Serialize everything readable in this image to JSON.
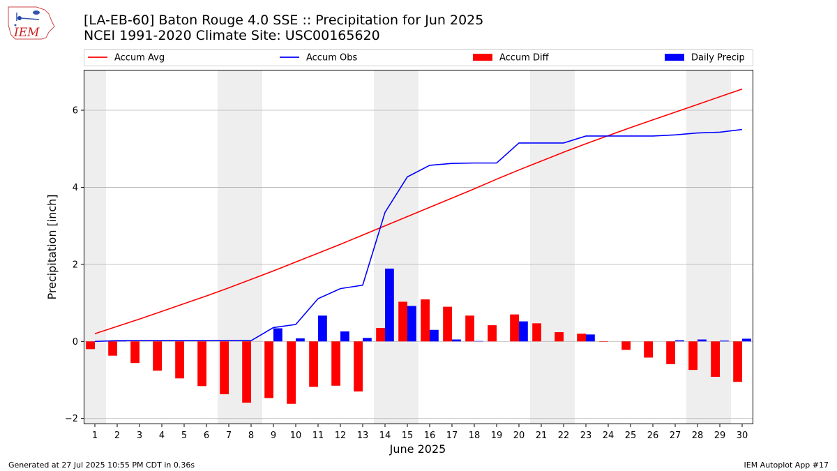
{
  "header": {
    "title_line1": "[LA-EB-60] Baton Rouge 4.0 SSE :: Precipitation for Jun 2025",
    "title_line2": "NCEI 1991-2020 Climate Site: USC00165620",
    "logo_text": "IEM"
  },
  "footer": {
    "generated": "Generated at 27 Jul 2025 10:55 PM CDT in 0.36s",
    "app": "IEM Autoplot App #17"
  },
  "colors": {
    "avg": "#ff0000",
    "obs": "#0000ff",
    "diff": "#ff0000",
    "daily": "#0000ff",
    "weekend": "#eeeeee",
    "grid": "#b0b0b0"
  },
  "chart_data": {
    "type": "bar",
    "xlabel": "June 2025",
    "ylabel": "Precipitation [inch]",
    "xlim": [
      0.5,
      30.5
    ],
    "ylim": [
      -2.15,
      7.05
    ],
    "yticks": [
      -2,
      0,
      2,
      4,
      6
    ],
    "grid": "y",
    "legend_position": "top",
    "legend": [
      "Accum Avg",
      "Accum Obs",
      "Accum Diff",
      "Daily Precip"
    ],
    "weekend_days": [
      1,
      7,
      8,
      14,
      15,
      21,
      22,
      28,
      29
    ],
    "days": [
      1,
      2,
      3,
      4,
      5,
      6,
      7,
      8,
      9,
      10,
      11,
      12,
      13,
      14,
      15,
      16,
      17,
      18,
      19,
      20,
      21,
      22,
      23,
      24,
      25,
      26,
      27,
      28,
      29,
      30
    ],
    "series": [
      {
        "name": "Accum Avg",
        "type": "line",
        "values": [
          0.2,
          0.39,
          0.58,
          0.78,
          0.98,
          1.18,
          1.39,
          1.61,
          1.83,
          2.06,
          2.29,
          2.52,
          2.76,
          3.0,
          3.24,
          3.48,
          3.72,
          3.96,
          4.21,
          4.45,
          4.68,
          4.91,
          5.13,
          5.34,
          5.55,
          5.75,
          5.95,
          6.15,
          6.35,
          6.55
        ]
      },
      {
        "name": "Accum Obs",
        "type": "line",
        "values": [
          0.0,
          0.02,
          0.02,
          0.02,
          0.02,
          0.02,
          0.02,
          0.02,
          0.36,
          0.44,
          1.11,
          1.37,
          1.46,
          3.35,
          4.27,
          4.57,
          4.62,
          4.63,
          4.63,
          5.15,
          5.15,
          5.15,
          5.33,
          5.33,
          5.33,
          5.33,
          5.36,
          5.41,
          5.43,
          5.5
        ]
      },
      {
        "name": "Accum Diff",
        "type": "bar",
        "values": [
          -0.2,
          -0.37,
          -0.56,
          -0.76,
          -0.96,
          -1.16,
          -1.37,
          -1.59,
          -1.47,
          -1.62,
          -1.18,
          -1.15,
          -1.3,
          0.35,
          1.03,
          1.09,
          0.9,
          0.67,
          0.42,
          0.7,
          0.47,
          0.24,
          0.2,
          -0.01,
          -0.22,
          -0.42,
          -0.59,
          -0.74,
          -0.92,
          -1.05
        ]
      },
      {
        "name": "Daily Precip",
        "type": "bar",
        "values": [
          0.0,
          0.02,
          0.0,
          0.0,
          0.0,
          0.0,
          0.0,
          0.0,
          0.34,
          0.08,
          0.67,
          0.26,
          0.09,
          1.89,
          0.92,
          0.3,
          0.05,
          0.01,
          0.0,
          0.52,
          0.0,
          0.0,
          0.18,
          0.0,
          0.0,
          0.0,
          0.03,
          0.05,
          0.02,
          0.07
        ]
      }
    ]
  }
}
